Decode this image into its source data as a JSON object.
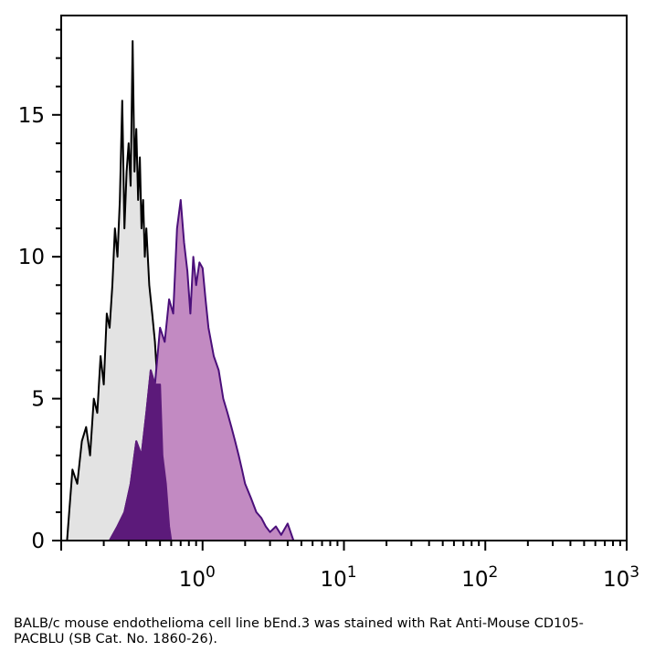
{
  "chart_data": {
    "type": "area",
    "title": "",
    "xlabel": "",
    "ylabel": "",
    "x_scale": "log",
    "xlim": [
      0.1,
      1000
    ],
    "ylim": [
      0,
      18.5
    ],
    "x_ticks": [
      {
        "value": 1,
        "base": "10",
        "exp": "0"
      },
      {
        "value": 10,
        "base": "10",
        "exp": "1"
      },
      {
        "value": 100,
        "base": "10",
        "exp": "2"
      },
      {
        "value": 1000,
        "base": "10",
        "exp": "3"
      }
    ],
    "y_ticks": [
      {
        "value": 0,
        "label": "0"
      },
      {
        "value": 5,
        "label": "5"
      },
      {
        "value": 10,
        "label": "10"
      },
      {
        "value": 15,
        "label": "15"
      }
    ],
    "grid": false,
    "legend": "none",
    "series": [
      {
        "role": "control",
        "fill_color": "#e3e3e3",
        "line_color": "#000000",
        "x": [
          0.11,
          0.12,
          0.13,
          0.14,
          0.15,
          0.16,
          0.17,
          0.18,
          0.19,
          0.2,
          0.21,
          0.22,
          0.23,
          0.24,
          0.25,
          0.26,
          0.27,
          0.28,
          0.29,
          0.3,
          0.31,
          0.32,
          0.33,
          0.34,
          0.35,
          0.36,
          0.37,
          0.38,
          0.39,
          0.4,
          0.42,
          0.44,
          0.46,
          0.48,
          0.5,
          0.52,
          0.55,
          0.58,
          0.6
        ],
        "y": [
          0,
          2.5,
          2,
          3.5,
          4,
          3,
          5,
          4.5,
          6.5,
          5.5,
          8,
          7.5,
          9,
          11,
          10,
          12,
          15.5,
          11,
          13,
          14,
          12.5,
          17.6,
          13,
          14.5,
          12,
          13.5,
          11,
          12,
          10,
          11,
          9,
          8,
          7,
          5.5,
          4,
          3,
          2,
          0.5,
          0
        ]
      },
      {
        "role": "stained",
        "fill_color": "#c28ac2",
        "line_color": "#4b0f7a",
        "x": [
          0.22,
          0.25,
          0.28,
          0.31,
          0.34,
          0.37,
          0.4,
          0.43,
          0.46,
          0.5,
          0.54,
          0.58,
          0.62,
          0.66,
          0.7,
          0.74,
          0.78,
          0.82,
          0.86,
          0.9,
          0.95,
          1.0,
          1.05,
          1.1,
          1.2,
          1.3,
          1.4,
          1.5,
          1.6,
          1.7,
          1.8,
          1.9,
          2.0,
          2.2,
          2.4,
          2.6,
          2.8,
          3.0,
          3.3,
          3.6,
          4.0,
          4.4
        ],
        "y": [
          0,
          0.5,
          1,
          2,
          3.5,
          3,
          4.5,
          6,
          5.5,
          7.5,
          7,
          8.5,
          8,
          11,
          12,
          10.5,
          9.5,
          8,
          10,
          9,
          9.8,
          9.6,
          8.5,
          7.5,
          6.5,
          6,
          5,
          4.5,
          4,
          3.5,
          3,
          2.5,
          2,
          1.5,
          1,
          0.8,
          0.5,
          0.3,
          0.5,
          0.2,
          0.6,
          0
        ]
      },
      {
        "role": "overlap",
        "fill_color": "#5c1a7a",
        "line_color": "#5c1a7a",
        "x": [
          0.22,
          0.25,
          0.28,
          0.31,
          0.34,
          0.37,
          0.4,
          0.43,
          0.46,
          0.5,
          0.52,
          0.55,
          0.58,
          0.6
        ],
        "y": [
          0,
          0.5,
          1,
          2,
          3.5,
          3,
          4.5,
          6,
          5.5,
          5.5,
          3,
          2,
          0.5,
          0
        ]
      }
    ]
  },
  "caption": "BALB/c mouse endothelioma cell line bEnd.3 was stained with Rat Anti-Mouse CD105-PACBLU (SB Cat. No. 1860-26)."
}
